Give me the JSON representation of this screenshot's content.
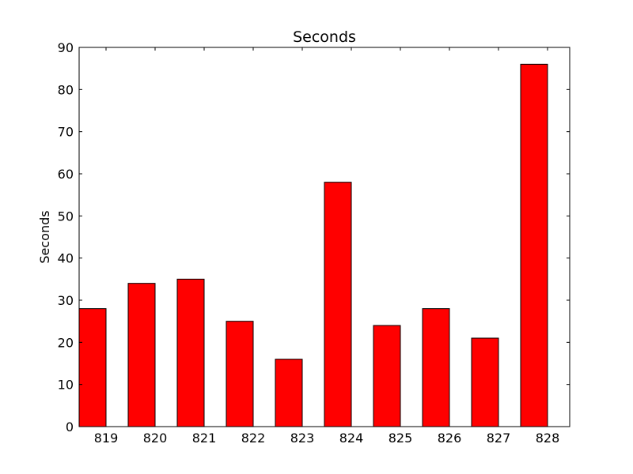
{
  "chart_data": {
    "type": "bar",
    "title": "Seconds",
    "xlabel": "",
    "ylabel": "Seconds",
    "categories": [
      "819",
      "820",
      "821",
      "822",
      "823",
      "824",
      "825",
      "826",
      "827",
      "828"
    ],
    "values": [
      28,
      34,
      35,
      25,
      16,
      58,
      24,
      28,
      21,
      86
    ],
    "ylim": [
      0,
      90
    ],
    "yticks": [
      "0",
      "10",
      "20",
      "30",
      "40",
      "50",
      "60",
      "70",
      "80",
      "90"
    ],
    "grid": false,
    "legend": "none",
    "bar_color": "#ff0000",
    "edge_color": "#000000"
  }
}
